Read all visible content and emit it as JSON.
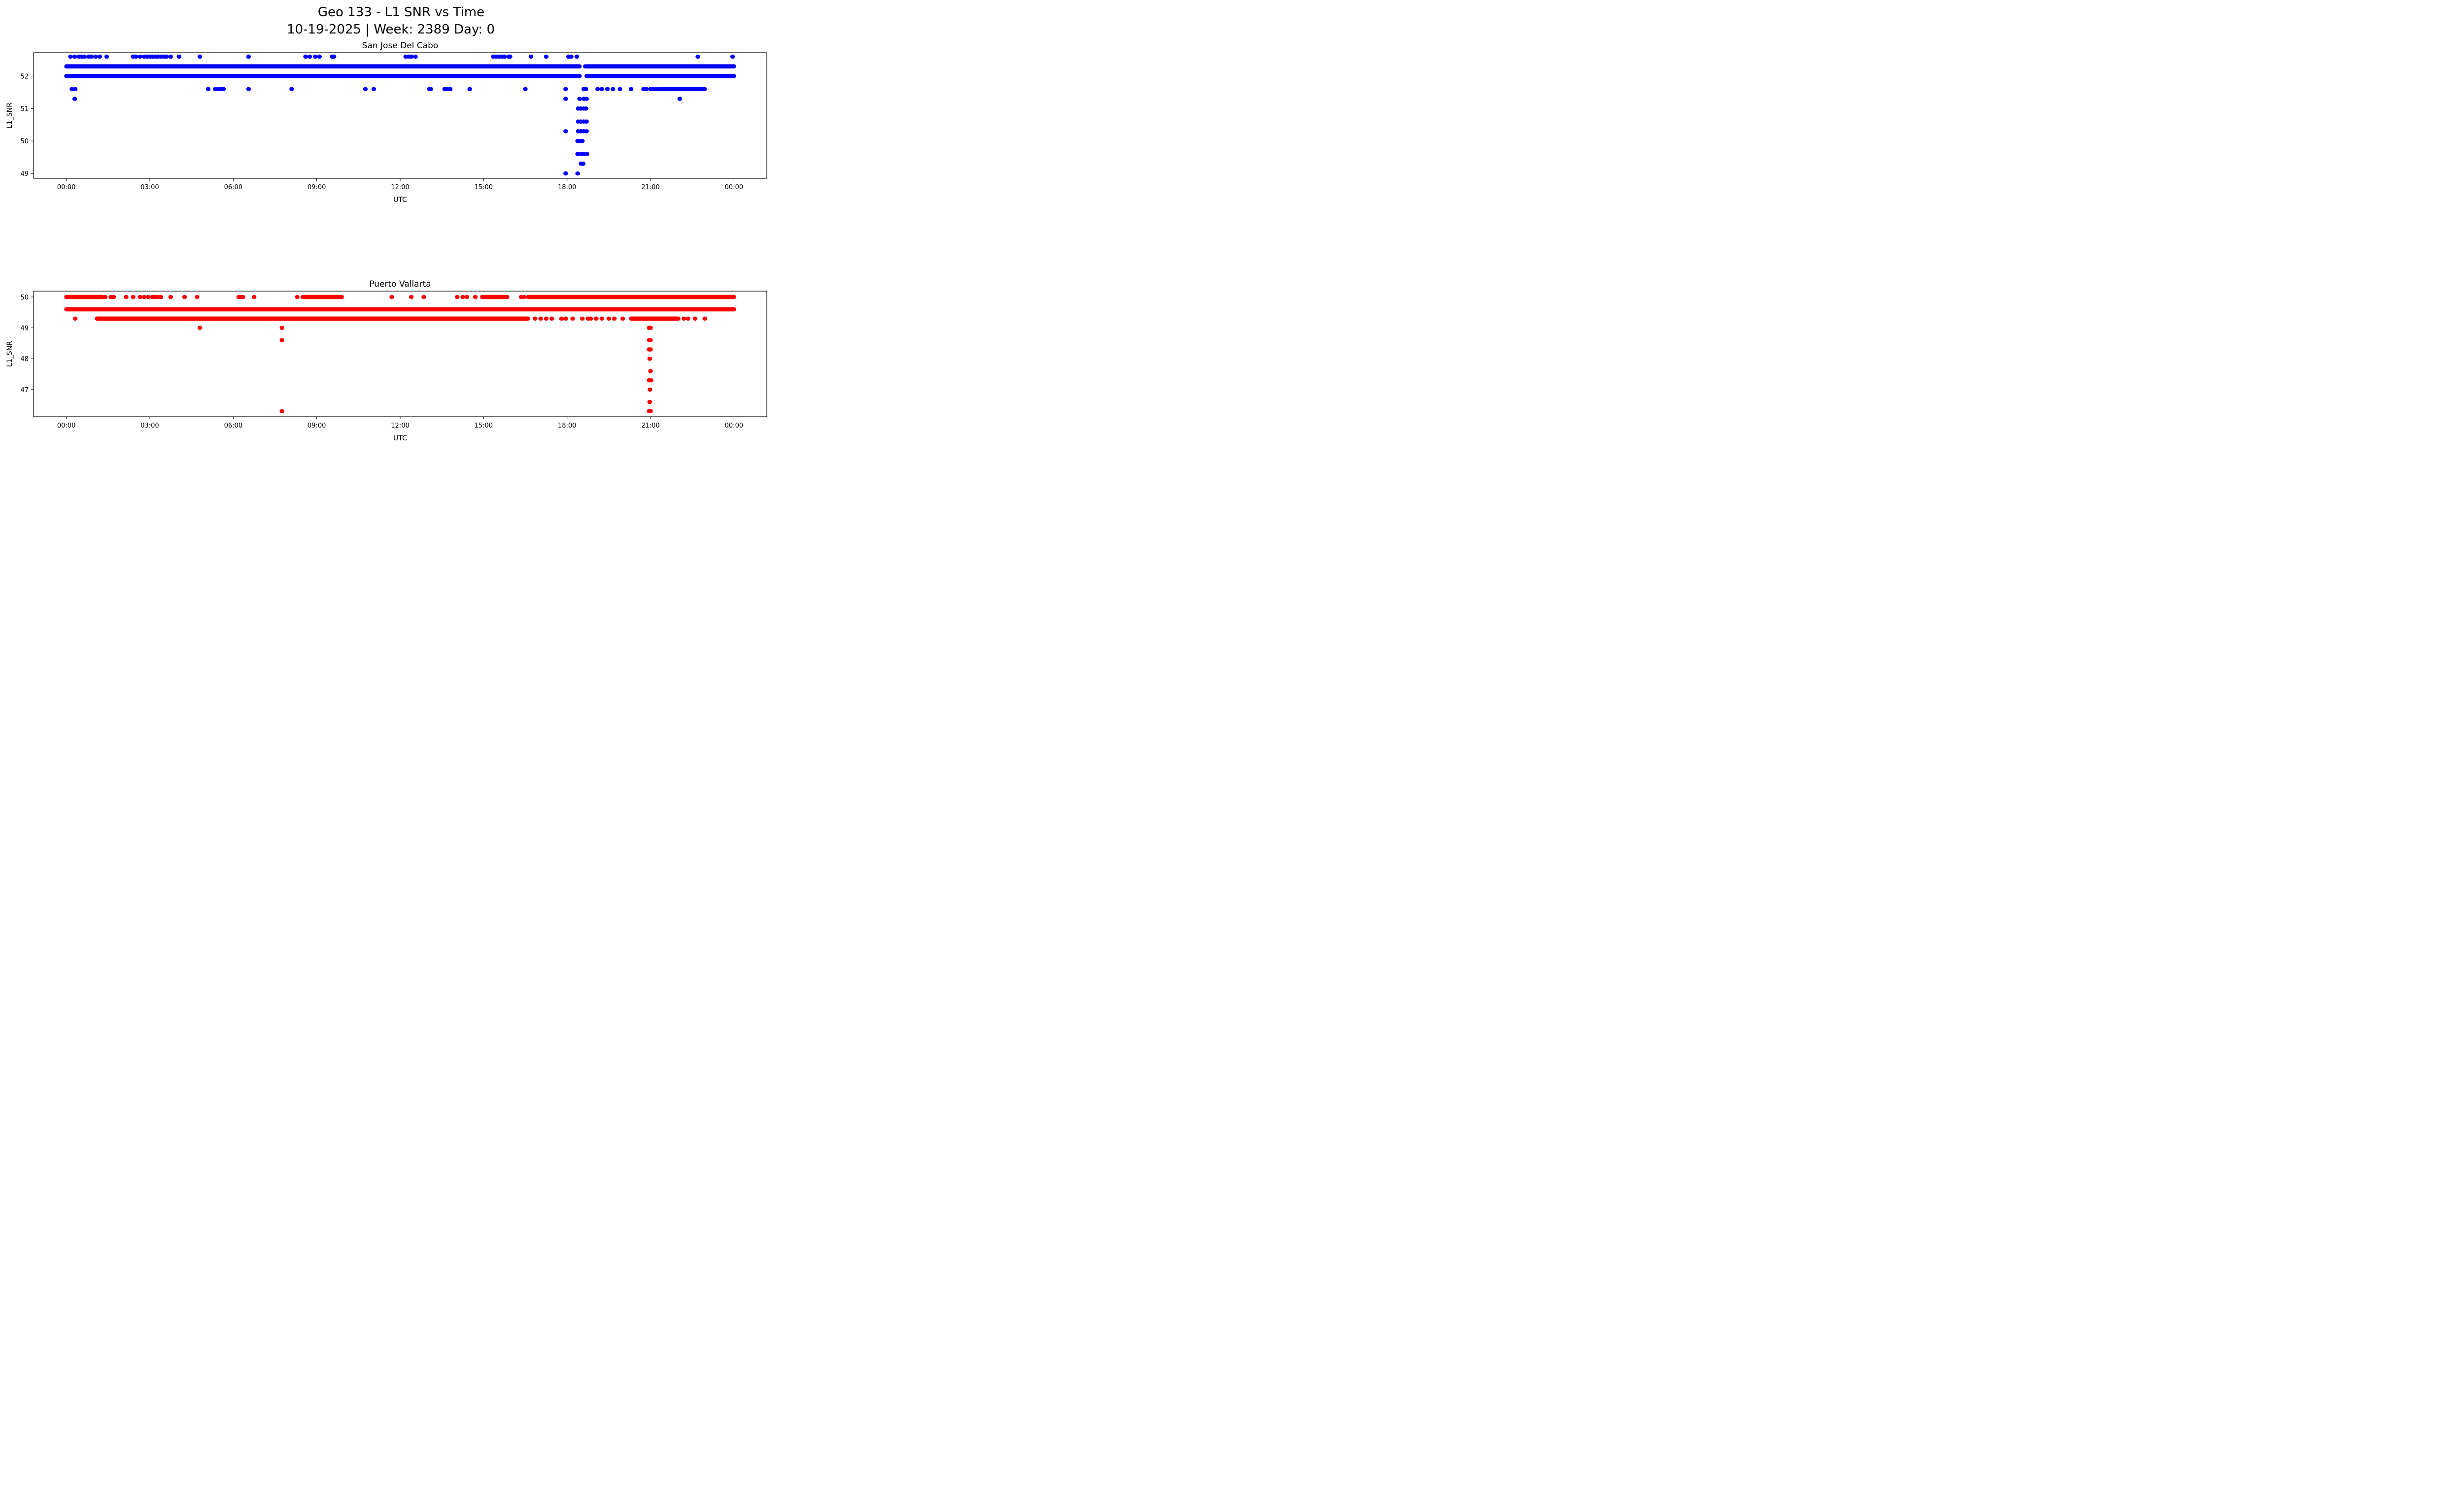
{
  "figure": {
    "title_line1": "Geo 133 - L1 SNR vs Time",
    "title_line2": "10-19-2025 | Week: 2389 Day: 0"
  },
  "chart_data": [
    {
      "type": "scatter",
      "title": "San Jose Del Cabo",
      "xlabel": "UTC",
      "ylabel": "L1_SNR",
      "color": "#0000ff",
      "x_unit": "hours",
      "xlim": [
        -1.18,
        25.18
      ],
      "ylim": [
        48.85,
        52.72
      ],
      "xticks": [
        0,
        3,
        6,
        9,
        12,
        15,
        18,
        21,
        24
      ],
      "xtick_labels": [
        "00:00",
        "03:00",
        "06:00",
        "09:00",
        "12:00",
        "15:00",
        "18:00",
        "21:00",
        "00:00"
      ],
      "yticks": [
        49,
        50,
        51,
        52
      ],
      "grid": false,
      "runs": [
        {
          "y": 52.3,
          "x_from": 0.0,
          "x_to": 18.45
        },
        {
          "y": 52.3,
          "x_from": 18.65,
          "x_to": 24.0
        },
        {
          "y": 52.0,
          "x_from": 0.0,
          "x_to": 18.45
        },
        {
          "y": 52.0,
          "x_from": 18.7,
          "x_to": 24.0
        },
        {
          "y": 51.6,
          "x_from": 21.35,
          "x_to": 22.95
        }
      ],
      "points": [
        [
          0.15,
          52.6
        ],
        [
          0.3,
          52.6
        ],
        [
          0.45,
          52.6
        ],
        [
          0.55,
          52.6
        ],
        [
          0.65,
          52.6
        ],
        [
          0.8,
          52.6
        ],
        [
          0.9,
          52.6
        ],
        [
          1.05,
          52.6
        ],
        [
          1.2,
          52.6
        ],
        [
          1.45,
          52.6
        ],
        [
          2.4,
          52.6
        ],
        [
          2.5,
          52.6
        ],
        [
          2.65,
          52.6
        ],
        [
          2.8,
          52.6
        ],
        [
          2.9,
          52.6
        ],
        [
          3.0,
          52.6
        ],
        [
          3.1,
          52.6
        ],
        [
          3.2,
          52.6
        ],
        [
          3.3,
          52.6
        ],
        [
          3.4,
          52.6
        ],
        [
          3.5,
          52.6
        ],
        [
          3.6,
          52.6
        ],
        [
          3.75,
          52.6
        ],
        [
          4.05,
          52.6
        ],
        [
          4.8,
          52.6
        ],
        [
          6.55,
          52.6
        ],
        [
          8.6,
          52.6
        ],
        [
          8.75,
          52.6
        ],
        [
          8.95,
          52.6
        ],
        [
          9.1,
          52.6
        ],
        [
          9.55,
          52.6
        ],
        [
          9.62,
          52.6
        ],
        [
          12.2,
          52.6
        ],
        [
          12.3,
          52.6
        ],
        [
          12.4,
          52.6
        ],
        [
          12.55,
          52.6
        ],
        [
          15.35,
          52.6
        ],
        [
          15.45,
          52.6
        ],
        [
          15.55,
          52.6
        ],
        [
          15.65,
          52.6
        ],
        [
          15.75,
          52.6
        ],
        [
          15.9,
          52.6
        ],
        [
          15.95,
          52.6
        ],
        [
          16.7,
          52.6
        ],
        [
          17.25,
          52.6
        ],
        [
          18.05,
          52.6
        ],
        [
          18.15,
          52.6
        ],
        [
          18.35,
          52.6
        ],
        [
          22.7,
          52.6
        ],
        [
          23.95,
          52.6
        ],
        [
          0.2,
          51.6
        ],
        [
          0.32,
          51.6
        ],
        [
          5.1,
          51.6
        ],
        [
          5.35,
          51.6
        ],
        [
          5.45,
          51.6
        ],
        [
          5.55,
          51.6
        ],
        [
          5.65,
          51.6
        ],
        [
          6.55,
          51.6
        ],
        [
          8.1,
          51.6
        ],
        [
          10.75,
          51.6
        ],
        [
          11.05,
          51.6
        ],
        [
          13.05,
          51.6
        ],
        [
          13.1,
          51.6
        ],
        [
          13.6,
          51.6
        ],
        [
          13.7,
          51.6
        ],
        [
          13.8,
          51.6
        ],
        [
          14.5,
          51.6
        ],
        [
          16.5,
          51.6
        ],
        [
          17.95,
          51.6
        ],
        [
          18.6,
          51.6
        ],
        [
          18.68,
          51.6
        ],
        [
          19.1,
          51.6
        ],
        [
          19.25,
          51.6
        ],
        [
          19.45,
          51.6
        ],
        [
          19.65,
          51.6
        ],
        [
          19.9,
          51.6
        ],
        [
          20.3,
          51.6
        ],
        [
          20.75,
          51.6
        ],
        [
          20.85,
          51.6
        ],
        [
          21.0,
          51.6
        ],
        [
          21.1,
          51.6
        ],
        [
          21.2,
          51.6
        ],
        [
          21.3,
          51.6
        ],
        [
          0.3,
          51.3
        ],
        [
          17.95,
          51.3
        ],
        [
          18.45,
          51.3
        ],
        [
          18.6,
          51.3
        ],
        [
          18.7,
          51.3
        ],
        [
          22.05,
          51.3
        ],
        [
          18.4,
          51.0
        ],
        [
          18.5,
          51.0
        ],
        [
          18.6,
          51.0
        ],
        [
          18.68,
          51.0
        ],
        [
          18.4,
          50.6
        ],
        [
          18.5,
          50.6
        ],
        [
          18.6,
          50.6
        ],
        [
          18.7,
          50.6
        ],
        [
          17.95,
          50.3
        ],
        [
          18.4,
          50.3
        ],
        [
          18.5,
          50.3
        ],
        [
          18.6,
          50.3
        ],
        [
          18.7,
          50.3
        ],
        [
          18.38,
          50.0
        ],
        [
          18.45,
          50.0
        ],
        [
          18.55,
          50.0
        ],
        [
          18.38,
          49.6
        ],
        [
          18.5,
          49.6
        ],
        [
          18.6,
          49.6
        ],
        [
          18.72,
          49.6
        ],
        [
          18.5,
          49.3
        ],
        [
          18.58,
          49.3
        ],
        [
          17.95,
          49.0
        ],
        [
          18.38,
          49.0
        ]
      ]
    },
    {
      "type": "scatter",
      "title": "Puerto Vallarta",
      "xlabel": "UTC",
      "ylabel": "L1_SNR",
      "color": "#ff0000",
      "x_unit": "hours",
      "xlim": [
        -1.18,
        25.18
      ],
      "ylim": [
        46.12,
        50.19
      ],
      "xticks": [
        0,
        3,
        6,
        9,
        12,
        15,
        18,
        21,
        24
      ],
      "xtick_labels": [
        "00:00",
        "03:00",
        "06:00",
        "09:00",
        "12:00",
        "15:00",
        "18:00",
        "21:00",
        "00:00"
      ],
      "yticks": [
        47,
        48,
        49,
        50
      ],
      "grid": false,
      "runs": [
        {
          "y": 50.0,
          "x_from": 0.0,
          "x_to": 1.3
        },
        {
          "y": 50.0,
          "x_from": 8.5,
          "x_to": 9.9
        },
        {
          "y": 50.0,
          "x_from": 14.95,
          "x_to": 15.85
        },
        {
          "y": 50.0,
          "x_from": 16.6,
          "x_to": 24.0
        },
        {
          "y": 49.6,
          "x_from": 0.0,
          "x_to": 24.0
        },
        {
          "y": 49.3,
          "x_from": 1.1,
          "x_to": 16.6
        },
        {
          "y": 49.3,
          "x_from": 20.3,
          "x_to": 22.0
        }
      ],
      "points": [
        [
          1.4,
          50.0
        ],
        [
          1.6,
          50.0
        ],
        [
          1.7,
          50.0
        ],
        [
          2.15,
          50.0
        ],
        [
          2.4,
          50.0
        ],
        [
          2.65,
          50.0
        ],
        [
          2.8,
          50.0
        ],
        [
          2.95,
          50.0
        ],
        [
          3.1,
          50.0
        ],
        [
          3.2,
          50.0
        ],
        [
          3.3,
          50.0
        ],
        [
          3.4,
          50.0
        ],
        [
          3.75,
          50.0
        ],
        [
          4.25,
          50.0
        ],
        [
          4.7,
          50.0
        ],
        [
          6.2,
          50.0
        ],
        [
          6.3,
          50.0
        ],
        [
          6.35,
          50.0
        ],
        [
          6.75,
          50.0
        ],
        [
          8.3,
          50.0
        ],
        [
          11.7,
          50.0
        ],
        [
          12.4,
          50.0
        ],
        [
          12.85,
          50.0
        ],
        [
          14.05,
          50.0
        ],
        [
          14.25,
          50.0
        ],
        [
          14.4,
          50.0
        ],
        [
          14.7,
          50.0
        ],
        [
          16.35,
          50.0
        ],
        [
          16.45,
          50.0
        ],
        [
          0.32,
          49.3
        ],
        [
          15.5,
          49.3
        ],
        [
          16.85,
          49.3
        ],
        [
          17.05,
          49.3
        ],
        [
          17.25,
          49.3
        ],
        [
          17.45,
          49.3
        ],
        [
          17.8,
          49.3
        ],
        [
          17.95,
          49.3
        ],
        [
          18.2,
          49.3
        ],
        [
          18.55,
          49.3
        ],
        [
          18.75,
          49.3
        ],
        [
          18.85,
          49.3
        ],
        [
          19.05,
          49.3
        ],
        [
          19.25,
          49.3
        ],
        [
          19.5,
          49.3
        ],
        [
          19.7,
          49.3
        ],
        [
          20.0,
          49.3
        ],
        [
          22.2,
          49.3
        ],
        [
          22.35,
          49.3
        ],
        [
          22.6,
          49.3
        ],
        [
          22.95,
          49.3
        ],
        [
          4.8,
          49.0
        ],
        [
          7.75,
          49.0
        ],
        [
          7.75,
          48.6
        ],
        [
          7.75,
          46.3
        ],
        [
          20.95,
          49.0
        ],
        [
          21.0,
          49.0
        ],
        [
          20.95,
          48.6
        ],
        [
          21.0,
          48.6
        ],
        [
          20.95,
          48.3
        ],
        [
          21.0,
          48.3
        ],
        [
          20.97,
          48.0
        ],
        [
          21.0,
          47.6
        ],
        [
          20.95,
          47.3
        ],
        [
          21.02,
          47.3
        ],
        [
          20.98,
          47.0
        ],
        [
          20.97,
          46.6
        ],
        [
          20.95,
          46.3
        ],
        [
          21.0,
          46.3
        ]
      ]
    }
  ]
}
